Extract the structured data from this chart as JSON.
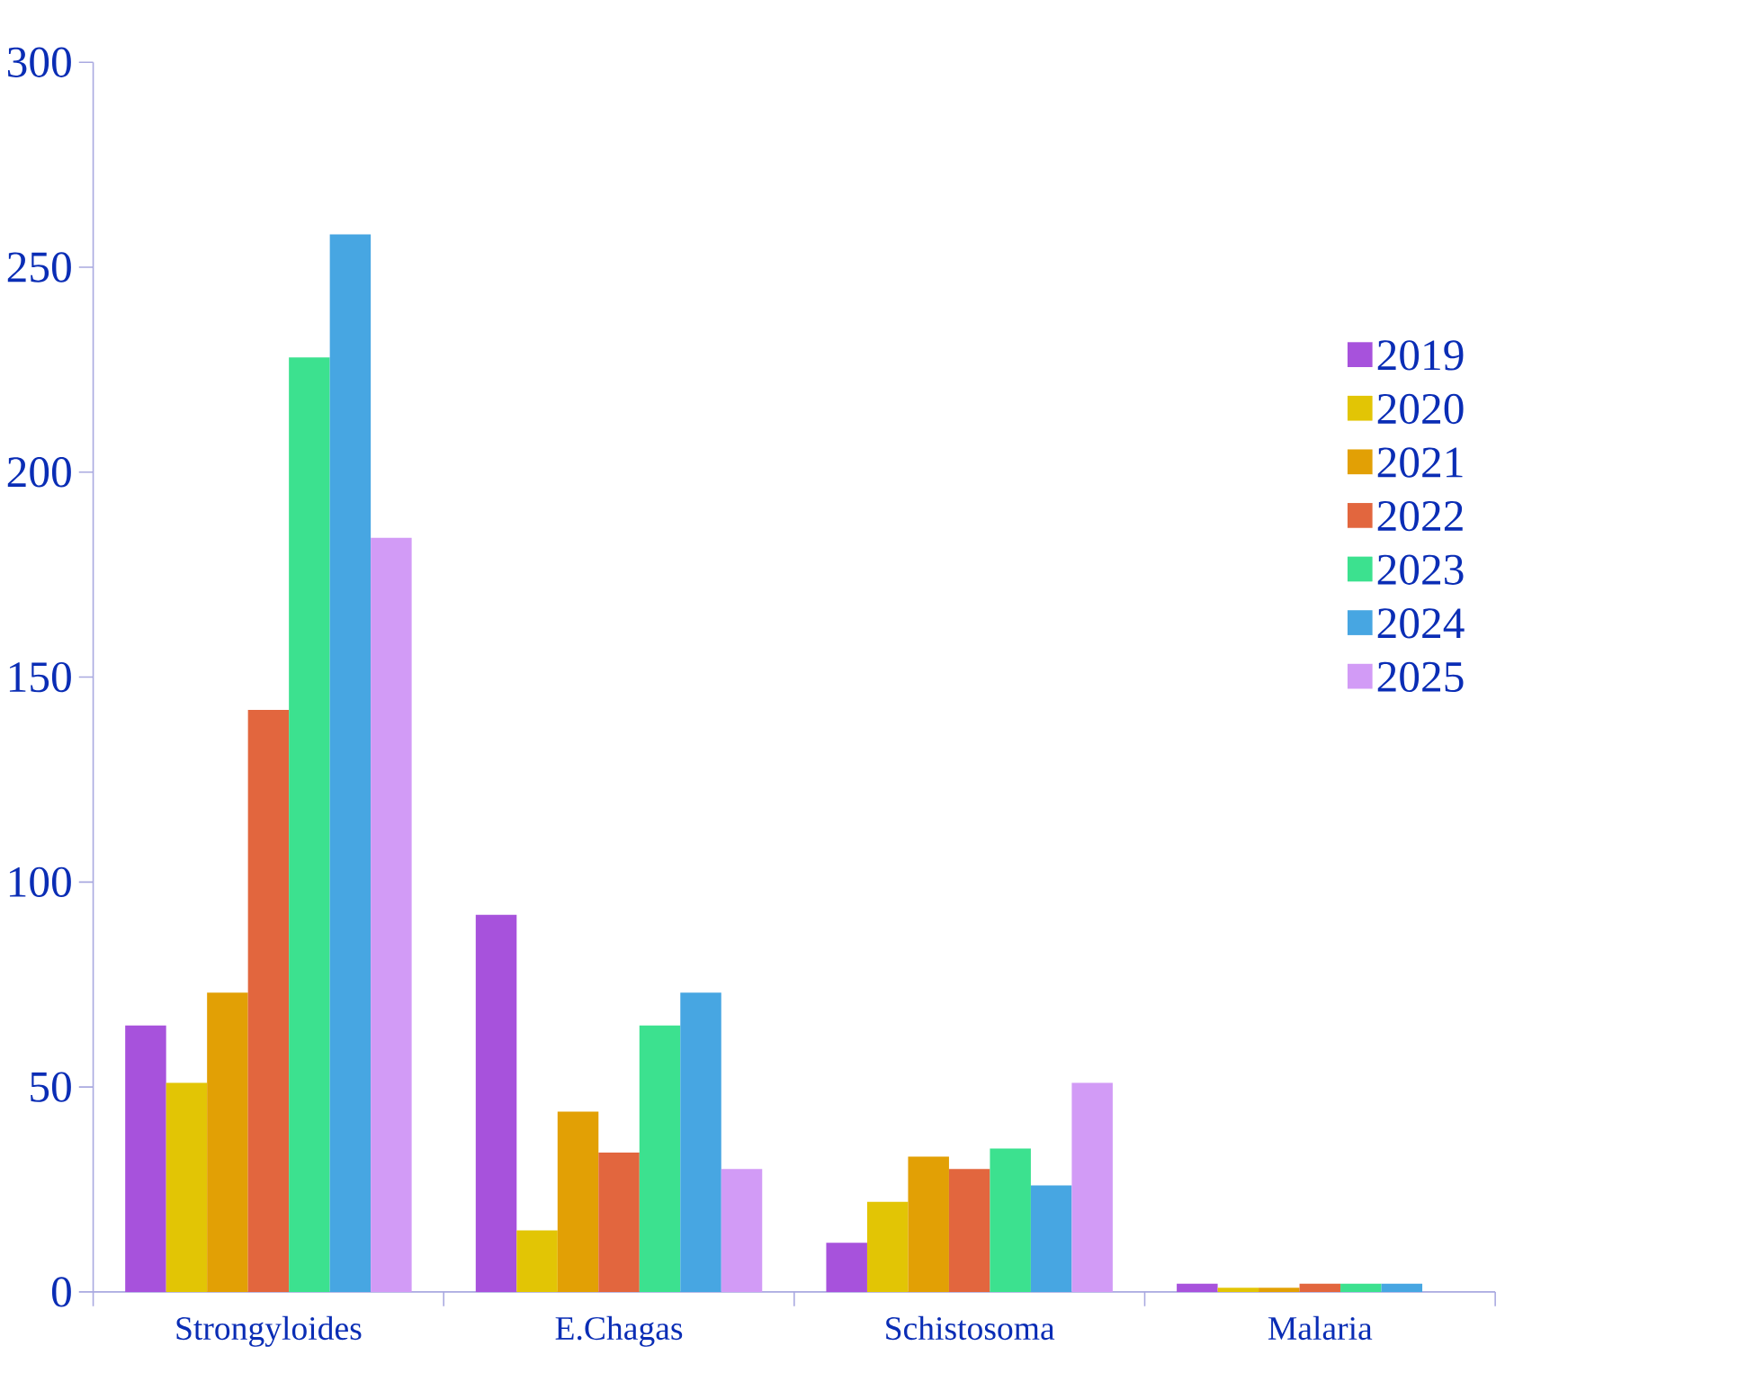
{
  "chart_data": {
    "type": "bar",
    "categories": [
      "Strongyloides",
      "E.Chagas",
      "Schistosoma",
      "Malaria"
    ],
    "series": [
      {
        "name": "2019",
        "color": "#a752dc",
        "values": [
          65,
          92,
          12,
          2
        ]
      },
      {
        "name": "2020",
        "color": "#e2c505",
        "values": [
          51,
          15,
          22,
          1
        ]
      },
      {
        "name": "2021",
        "color": "#e2a005",
        "values": [
          73,
          44,
          33,
          1
        ]
      },
      {
        "name": "2022",
        "color": "#e2663e",
        "values": [
          142,
          34,
          30,
          2
        ]
      },
      {
        "name": "2023",
        "color": "#3ce18f",
        "values": [
          228,
          65,
          35,
          2
        ]
      },
      {
        "name": "2024",
        "color": "#47a6e2",
        "values": [
          258,
          73,
          26,
          2
        ]
      },
      {
        "name": "2025",
        "color": "#d29bf6",
        "values": [
          184,
          30,
          51,
          null
        ]
      }
    ],
    "ylim": [
      0,
      300
    ],
    "yticks": [
      0,
      50,
      100,
      150,
      200,
      250,
      300
    ],
    "grid": false,
    "legend": "right"
  }
}
